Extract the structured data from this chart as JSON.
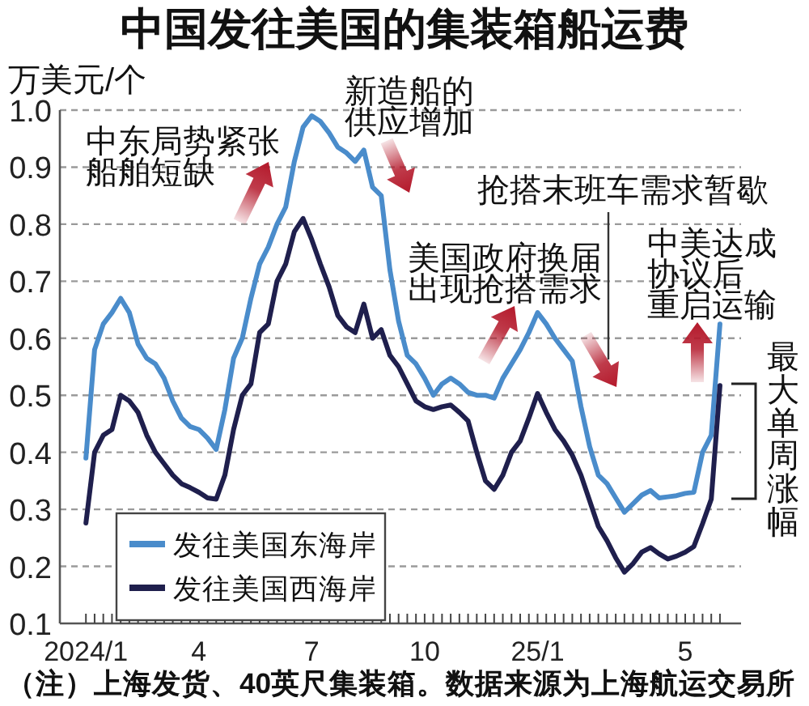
{
  "chart_data": {
    "type": "line",
    "title": "中国发往美国的集装箱船运费",
    "ylabel": "万美元/个",
    "annotations": [
      "中东局势紧张船舶短缺",
      "新造船的供应增加",
      "抢搭末班车需求暂歇",
      "美国政府换届出现抢搭需求",
      "中美达成协议后重启运输",
      "最大单周涨幅",
      "（注）上海发货、40英尺集装箱。数据来源为上海航运交易所"
    ],
    "x": [
      "2024-01-05",
      "2024-01-12",
      "2024-01-19",
      "2024-01-26",
      "2024-02-02",
      "2024-02-09",
      "2024-02-16",
      "2024-02-23",
      "2024-03-01",
      "2024-03-08",
      "2024-03-15",
      "2024-03-22",
      "2024-03-29",
      "2024-04-05",
      "2024-04-12",
      "2024-04-19",
      "2024-04-26",
      "2024-05-03",
      "2024-05-10",
      "2024-05-17",
      "2024-05-24",
      "2024-05-31",
      "2024-06-07",
      "2024-06-14",
      "2024-06-21",
      "2024-06-28",
      "2024-07-05",
      "2024-07-12",
      "2024-07-19",
      "2024-07-26",
      "2024-08-02",
      "2024-08-09",
      "2024-08-16",
      "2024-08-23",
      "2024-08-30",
      "2024-09-06",
      "2024-09-13",
      "2024-09-20",
      "2024-09-27",
      "2024-10-04",
      "2024-10-11",
      "2024-10-18",
      "2024-10-25",
      "2024-11-01",
      "2024-11-08",
      "2024-11-15",
      "2024-11-22",
      "2024-11-29",
      "2024-12-06",
      "2024-12-13",
      "2024-12-20",
      "2024-12-27",
      "2025-01-03",
      "2025-01-10",
      "2025-01-17",
      "2025-01-24",
      "2025-01-31",
      "2025-02-07",
      "2025-02-14",
      "2025-02-21",
      "2025-02-28",
      "2025-03-07",
      "2025-03-14",
      "2025-03-21",
      "2025-03-28",
      "2025-04-04",
      "2025-04-11",
      "2025-04-18",
      "2025-04-25",
      "2025-05-02",
      "2025-05-09",
      "2025-05-16",
      "2025-05-23",
      "2025-05-30"
    ],
    "series": [
      {
        "name": "发往美国东海岸",
        "color": "#4a8ccb",
        "values": [
          0.39,
          0.58,
          0.625,
          0.645,
          0.67,
          0.645,
          0.59,
          0.565,
          0.555,
          0.53,
          0.49,
          0.46,
          0.445,
          0.44,
          0.425,
          0.405,
          0.475,
          0.565,
          0.6,
          0.67,
          0.73,
          0.76,
          0.8,
          0.83,
          0.91,
          0.97,
          0.99,
          0.98,
          0.96,
          0.935,
          0.925,
          0.91,
          0.93,
          0.865,
          0.85,
          0.72,
          0.63,
          0.57,
          0.555,
          0.53,
          0.5,
          0.52,
          0.53,
          0.52,
          0.505,
          0.5,
          0.5,
          0.495,
          0.53,
          0.555,
          0.58,
          0.61,
          0.645,
          0.625,
          0.6,
          0.58,
          0.56,
          0.48,
          0.41,
          0.36,
          0.345,
          0.32,
          0.295,
          0.31,
          0.325,
          0.333,
          0.32,
          0.322,
          0.324,
          0.328,
          0.33,
          0.4,
          0.43,
          0.625
        ]
      },
      {
        "name": "发往美国西海岸",
        "color": "#1f1f4d",
        "values": [
          0.276,
          0.4,
          0.43,
          0.44,
          0.5,
          0.49,
          0.47,
          0.43,
          0.4,
          0.38,
          0.36,
          0.345,
          0.338,
          0.33,
          0.32,
          0.318,
          0.36,
          0.44,
          0.5,
          0.52,
          0.61,
          0.625,
          0.7,
          0.73,
          0.787,
          0.81,
          0.773,
          0.73,
          0.69,
          0.64,
          0.62,
          0.61,
          0.66,
          0.6,
          0.615,
          0.57,
          0.55,
          0.52,
          0.49,
          0.48,
          0.475,
          0.48,
          0.483,
          0.47,
          0.455,
          0.4,
          0.35,
          0.335,
          0.36,
          0.4,
          0.42,
          0.46,
          0.503,
          0.47,
          0.44,
          0.42,
          0.395,
          0.36,
          0.315,
          0.27,
          0.245,
          0.215,
          0.19,
          0.205,
          0.225,
          0.233,
          0.222,
          0.213,
          0.218,
          0.225,
          0.235,
          0.275,
          0.318,
          0.517
        ]
      }
    ],
    "xlim": [
      "2023-12-15",
      "2025-06-16"
    ],
    "xticks": [
      {
        "value": "2024-01-05",
        "label": "2024/1"
      },
      {
        "value": "2024-01-12",
        "label": null
      },
      {
        "value": "2024-01-19",
        "label": null
      },
      {
        "value": "2024-01-26",
        "label": null
      },
      {
        "value": "2024-02-02",
        "label": null
      },
      {
        "value": "2024-02-09",
        "label": null
      },
      {
        "value": "2024-02-16",
        "label": null
      },
      {
        "value": "2024-02-23",
        "label": null
      },
      {
        "value": "2024-03-01",
        "label": null
      },
      {
        "value": "2024-03-08",
        "label": null
      },
      {
        "value": "2024-03-15",
        "label": null
      },
      {
        "value": "2024-03-22",
        "label": null
      },
      {
        "value": "2024-03-29",
        "label": null
      },
      {
        "value": "2024-04-05",
        "label": "4"
      },
      {
        "value": "2024-04-12",
        "label": null
      },
      {
        "value": "2024-04-19",
        "label": null
      },
      {
        "value": "2024-04-26",
        "label": null
      },
      {
        "value": "2024-05-03",
        "label": null
      },
      {
        "value": "2024-05-10",
        "label": null
      },
      {
        "value": "2024-05-17",
        "label": null
      },
      {
        "value": "2024-05-24",
        "label": null
      },
      {
        "value": "2024-05-31",
        "label": null
      },
      {
        "value": "2024-06-07",
        "label": null
      },
      {
        "value": "2024-06-14",
        "label": null
      },
      {
        "value": "2024-06-21",
        "label": null
      },
      {
        "value": "2024-06-28",
        "label": null
      },
      {
        "value": "2024-07-05",
        "label": "7"
      },
      {
        "value": "2024-07-12",
        "label": null
      },
      {
        "value": "2024-07-19",
        "label": null
      },
      {
        "value": "2024-07-26",
        "label": null
      },
      {
        "value": "2024-08-02",
        "label": null
      },
      {
        "value": "2024-08-09",
        "label": null
      },
      {
        "value": "2024-08-16",
        "label": null
      },
      {
        "value": "2024-08-23",
        "label": null
      },
      {
        "value": "2024-08-30",
        "label": null
      },
      {
        "value": "2024-09-06",
        "label": null
      },
      {
        "value": "2024-09-13",
        "label": null
      },
      {
        "value": "2024-09-20",
        "label": null
      },
      {
        "value": "2024-09-27",
        "label": null
      },
      {
        "value": "2024-10-04",
        "label": "10"
      },
      {
        "value": "2024-10-11",
        "label": null
      },
      {
        "value": "2024-10-18",
        "label": null
      },
      {
        "value": "2024-10-25",
        "label": null
      },
      {
        "value": "2024-11-01",
        "label": null
      },
      {
        "value": "2024-11-08",
        "label": null
      },
      {
        "value": "2024-11-15",
        "label": null
      },
      {
        "value": "2024-11-22",
        "label": null
      },
      {
        "value": "2024-11-29",
        "label": null
      },
      {
        "value": "2024-12-06",
        "label": null
      },
      {
        "value": "2024-12-13",
        "label": null
      },
      {
        "value": "2024-12-20",
        "label": null
      },
      {
        "value": "2024-12-27",
        "label": null
      },
      {
        "value": "2025-01-03",
        "label": "25/1"
      },
      {
        "value": "2025-01-10",
        "label": null
      },
      {
        "value": "2025-01-17",
        "label": null
      },
      {
        "value": "2025-01-24",
        "label": null
      },
      {
        "value": "2025-01-31",
        "label": null
      },
      {
        "value": "2025-02-07",
        "label": null
      },
      {
        "value": "2025-02-14",
        "label": null
      },
      {
        "value": "2025-02-21",
        "label": null
      },
      {
        "value": "2025-02-28",
        "label": null
      },
      {
        "value": "2025-03-07",
        "label": null
      },
      {
        "value": "2025-03-14",
        "label": null
      },
      {
        "value": "2025-03-21",
        "label": null
      },
      {
        "value": "2025-03-28",
        "label": null
      },
      {
        "value": "2025-04-04",
        "label": null
      },
      {
        "value": "2025-04-11",
        "label": null
      },
      {
        "value": "2025-04-18",
        "label": null
      },
      {
        "value": "2025-04-25",
        "label": null
      },
      {
        "value": "2025-05-02",
        "label": "5"
      },
      {
        "value": "2025-05-09",
        "label": null
      },
      {
        "value": "2025-05-16",
        "label": null
      },
      {
        "value": "2025-05-23",
        "label": null
      },
      {
        "value": "2025-05-30",
        "label": null
      }
    ],
    "ylim": [
      0.1,
      1.0
    ],
    "yticks": [
      0.1,
      0.2,
      0.3,
      0.4,
      0.5,
      0.6,
      0.7,
      0.8,
      0.9,
      {
        "value": 1,
        "label": "1.0"
      }
    ],
    "grid": "y",
    "legend": "bottom left"
  }
}
